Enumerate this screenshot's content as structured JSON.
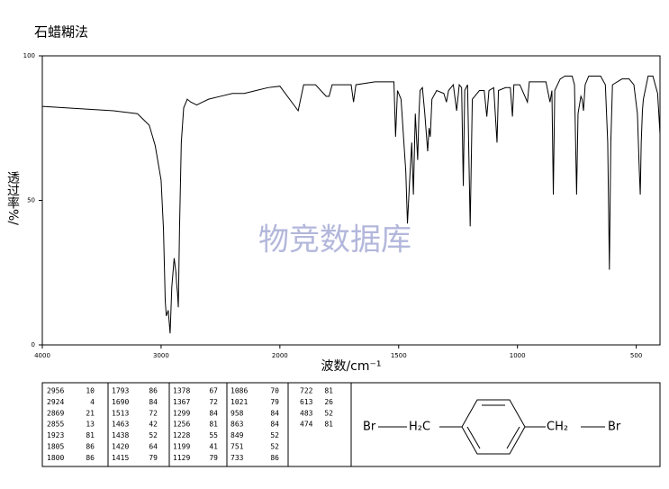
{
  "chart_data": {
    "type": "line",
    "title": "石蜡糊法",
    "xlabel": "波数/cm⁻¹",
    "ylabel": "透过率%/",
    "watermark": "物竞数据库",
    "xlim": [
      4000,
      400
    ],
    "xticks": [
      4000,
      3000,
      2000,
      1500,
      1000,
      500
    ],
    "ylim": [
      0,
      100
    ],
    "yticks": [
      0,
      50,
      100
    ],
    "series": [
      {
        "name": null,
        "color": "#000000",
        "x": [
          4000,
          3800,
          3600,
          3400,
          3200,
          3100,
          3050,
          3000,
          2980,
          2965,
          2956,
          2940,
          2924,
          2910,
          2890,
          2875,
          2869,
          2862,
          2855,
          2845,
          2830,
          2810,
          2780,
          2750,
          2700,
          2650,
          2600,
          2500,
          2400,
          2300,
          2200,
          2100,
          2000,
          1923,
          1900,
          1850,
          1805,
          1800,
          1793,
          1780,
          1700,
          1690,
          1680,
          1600,
          1550,
          1520,
          1513,
          1505,
          1490,
          1470,
          1463,
          1455,
          1445,
          1438,
          1430,
          1420,
          1415,
          1410,
          1400,
          1390,
          1378,
          1372,
          1367,
          1360,
          1340,
          1310,
          1299,
          1290,
          1270,
          1256,
          1245,
          1235,
          1228,
          1222,
          1210,
          1199,
          1190,
          1160,
          1140,
          1129,
          1120,
          1100,
          1086,
          1080,
          1050,
          1030,
          1021,
          1015,
          990,
          958,
          950,
          900,
          880,
          863,
          855,
          849,
          843,
          820,
          800,
          770,
          760,
          751,
          745,
          733,
          728,
          722,
          715,
          700,
          650,
          630,
          620,
          613,
          607,
          600,
          560,
          530,
          510,
          495,
          487,
          483,
          479,
          474,
          470,
          450,
          430,
          410,
          400
        ],
        "values": [
          82.5,
          82,
          81.5,
          81,
          80,
          76,
          69,
          57,
          40,
          15,
          10,
          12,
          4,
          20,
          30,
          25,
          21,
          18,
          13,
          40,
          70,
          82,
          85,
          84,
          83,
          84,
          85,
          86,
          87,
          87,
          88,
          89,
          89.5,
          81,
          90,
          90,
          86,
          86,
          86,
          90,
          90,
          84,
          90,
          91,
          91,
          91,
          72,
          88,
          85,
          60,
          42,
          55,
          70,
          52,
          80,
          64,
          79,
          88,
          89,
          80,
          67,
          75,
          72,
          85,
          88,
          87,
          84,
          88,
          90,
          81,
          90,
          89,
          55,
          88,
          90,
          41,
          85,
          88,
          88,
          79,
          88,
          89,
          70,
          88,
          89,
          89,
          79,
          90,
          90,
          84,
          91,
          91,
          91,
          84,
          88,
          52,
          88,
          92,
          93,
          93,
          90,
          52,
          80,
          86,
          85,
          81,
          90,
          93,
          93,
          90,
          70,
          26,
          70,
          90,
          92,
          92,
          90,
          80,
          60,
          52,
          70,
          81,
          85,
          93,
          93,
          87,
          73
        ]
      }
    ]
  },
  "peak_table": {
    "columns": [
      [
        [
          "2956",
          "10"
        ],
        [
          "2924",
          "4"
        ],
        [
          "2869",
          "21"
        ],
        [
          "2855",
          "13"
        ],
        [
          "1923",
          "81"
        ],
        [
          "1805",
          "86"
        ],
        [
          "1800",
          "86"
        ]
      ],
      [
        [
          "1793",
          "86"
        ],
        [
          "1690",
          "84"
        ],
        [
          "1513",
          "72"
        ],
        [
          "1463",
          "42"
        ],
        [
          "1438",
          "52"
        ],
        [
          "1420",
          "64"
        ],
        [
          "1415",
          "79"
        ]
      ],
      [
        [
          "1378",
          "67"
        ],
        [
          "1367",
          "72"
        ],
        [
          "1299",
          "84"
        ],
        [
          "1256",
          "81"
        ],
        [
          "1228",
          "55"
        ],
        [
          "1199",
          "41"
        ],
        [
          "1129",
          "79"
        ]
      ],
      [
        [
          "1086",
          "70"
        ],
        [
          "1021",
          "79"
        ],
        [
          "958",
          "84"
        ],
        [
          "863",
          "84"
        ],
        [
          "849",
          "52"
        ],
        [
          "751",
          "52"
        ],
        [
          "733",
          "86"
        ]
      ],
      [
        [
          "722",
          "81"
        ],
        [
          "613",
          "26"
        ],
        [
          "483",
          "52"
        ],
        [
          "474",
          "81"
        ]
      ]
    ]
  },
  "structure": {
    "left_atom": "Br",
    "left_group": "H₂C",
    "right_group": "CH₂",
    "right_atom": "Br"
  }
}
